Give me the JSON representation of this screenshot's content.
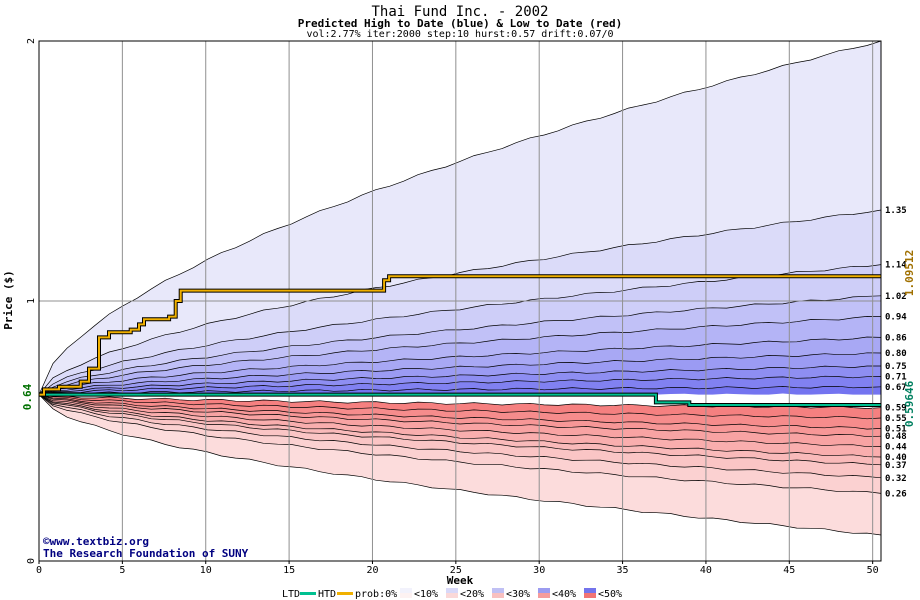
{
  "chart_data": {
    "type": "area",
    "title": "Thai Fund Inc. - 2002",
    "subtitle": "Predicted High to Date (blue) &  Low to Date (red)",
    "params": "vol:2.77% iter:2000 step:10 hurst:0.57 drift:0.07/0",
    "xlabel": "Week",
    "ylabel": "Price ($)",
    "xlim": [
      0,
      50.5
    ],
    "ylim": [
      0,
      2
    ],
    "x_ticks": [
      0,
      5,
      10,
      15,
      20,
      25,
      30,
      35,
      40,
      45,
      50
    ],
    "y_ticks": [
      0,
      1,
      2
    ],
    "start_price": 0.64,
    "start_label": "0.64",
    "htd_final_label": "1.09512",
    "ltd_final_label": "0.59646",
    "grid": true,
    "colors": {
      "htd": "#f0b000",
      "ltd": "#00c090",
      "blue_band_light": "#e8e8fa",
      "blue_band_dark": "#7474f0",
      "red_band_light": "#fde8e8",
      "red_band_dark": "#f58080",
      "start_label_color": "#007000",
      "htd_label_color": "#a07000",
      "ltd_label_color": "#008060"
    },
    "high_quantiles": [
      {
        "label": "2",
        "final": 2.0
      },
      {
        "label": "1.35",
        "final": 1.35
      },
      {
        "label": "1.14",
        "final": 1.14
      },
      {
        "label": "1.02",
        "final": 1.02
      },
      {
        "label": "0.94",
        "final": 0.94
      },
      {
        "label": "0.86",
        "final": 0.86
      },
      {
        "label": "0.80",
        "final": 0.8
      },
      {
        "label": "0.75",
        "final": 0.75
      },
      {
        "label": "0.71",
        "final": 0.71
      },
      {
        "label": "0.67",
        "final": 0.67
      }
    ],
    "low_quantiles": [
      {
        "label": "0.59",
        "final": 0.59
      },
      {
        "label": "0.55",
        "final": 0.55
      },
      {
        "label": "0.51",
        "final": 0.51
      },
      {
        "label": "0.48",
        "final": 0.48
      },
      {
        "label": "0.44",
        "final": 0.44
      },
      {
        "label": "0.40",
        "final": 0.4
      },
      {
        "label": "0.37",
        "final": 0.37
      },
      {
        "label": "0.32",
        "final": 0.32
      },
      {
        "label": "0.26",
        "final": 0.26
      },
      {
        "label": "",
        "final": 0.1
      }
    ],
    "htd_series": [
      [
        0,
        0.64
      ],
      [
        0.3,
        0.66
      ],
      [
        1.2,
        0.67
      ],
      [
        2.5,
        0.69
      ],
      [
        3.0,
        0.74
      ],
      [
        3.6,
        0.86
      ],
      [
        4.2,
        0.88
      ],
      [
        5.5,
        0.89
      ],
      [
        6.0,
        0.91
      ],
      [
        6.3,
        0.93
      ],
      [
        7.8,
        0.94
      ],
      [
        8.2,
        1.0
      ],
      [
        8.5,
        1.04
      ],
      [
        20.5,
        1.04
      ],
      [
        20.7,
        1.08
      ],
      [
        21.0,
        1.095
      ],
      [
        50.5,
        1.095
      ]
    ],
    "ltd_series": [
      [
        0,
        0.64
      ],
      [
        1.0,
        0.64
      ],
      [
        36.8,
        0.64
      ],
      [
        37.0,
        0.61
      ],
      [
        39.0,
        0.6
      ],
      [
        50.5,
        0.6
      ]
    ],
    "credit_lines": [
      "©www.textbiz.org",
      "The Research Foundation of SUNY"
    ],
    "legend": {
      "ltd": "LTD",
      "htd": "HTD",
      "prob": "prob:0%",
      "bins": [
        "<10%",
        "<20%",
        "<30%",
        "<40%",
        "<50%"
      ],
      "bin_colors_top": [
        "#f2f2fc",
        "#d8d8f8",
        "#c0c0f4",
        "#9c9cf0",
        "#7474ec"
      ],
      "bin_colors_bottom": [
        "#fdf2f2",
        "#fad8d8",
        "#f8c0c0",
        "#f59c9c",
        "#f27474"
      ]
    }
  }
}
